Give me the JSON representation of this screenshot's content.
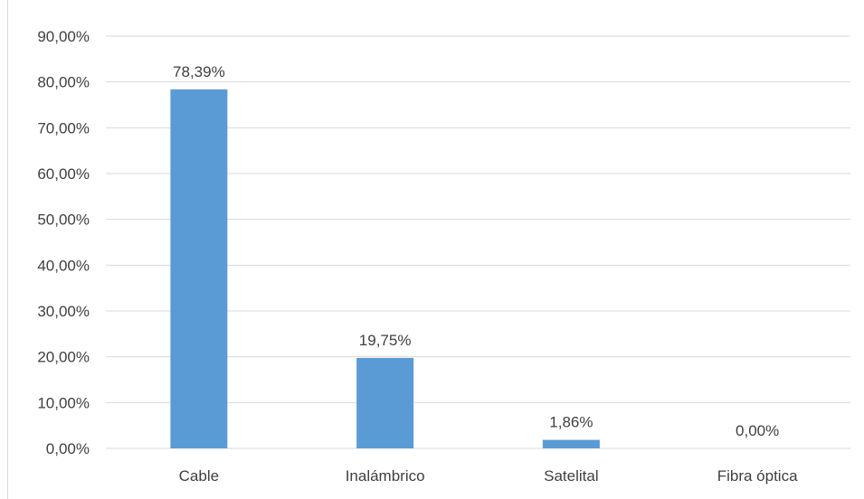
{
  "chart_data": {
    "type": "bar",
    "categories": [
      "Cable",
      "Inalámbrico",
      "Satelital",
      "Fibra óptica"
    ],
    "values": [
      78.39,
      19.75,
      1.86,
      0.0
    ],
    "data_labels": [
      "78,39%",
      "19,75%",
      "1,86%",
      "0,00%"
    ],
    "y_ticks": [
      "0,00%",
      "10,00%",
      "20,00%",
      "30,00%",
      "40,00%",
      "50,00%",
      "60,00%",
      "70,00%",
      "80,00%",
      "90,00%"
    ],
    "ylim": [
      0,
      90
    ],
    "grid": true,
    "bar_color": "#5b9bd5",
    "grid_color": "#d9d9d9",
    "text_color": "#404040"
  }
}
